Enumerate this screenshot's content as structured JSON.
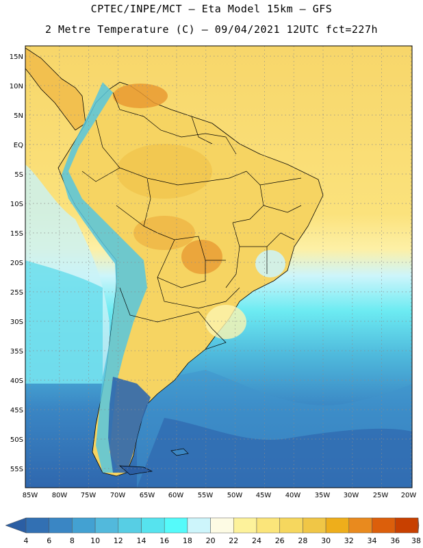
{
  "header": {
    "line1": "CPTEC/INPE/MCT –  Eta Model 15km – GFS",
    "line2": "2 Metre Temperature (C) – 09/04/2021 12UTC fct=227h"
  },
  "map": {
    "lat_labels": [
      "15N",
      "10N",
      "5N",
      "EQ",
      "5S",
      "10S",
      "15S",
      "20S",
      "25S",
      "30S",
      "35S",
      "40S",
      "45S",
      "50S",
      "55S"
    ],
    "lon_labels": [
      "85W",
      "80W",
      "75W",
      "70W",
      "65W",
      "60W",
      "55W",
      "50W",
      "45W",
      "40W",
      "35W",
      "30W",
      "25W",
      "20W"
    ]
  },
  "colorbar": {
    "values": [
      "4",
      "6",
      "8",
      "10",
      "12",
      "14",
      "16",
      "18",
      "20",
      "22",
      "24",
      "26",
      "28",
      "30",
      "32",
      "34",
      "36",
      "38"
    ],
    "colors": [
      "#2b5ea3",
      "#3270b3",
      "#3a86c4",
      "#43a1d2",
      "#52b9dc",
      "#57cee4",
      "#56e3ee",
      "#55fafa",
      "#cdf5fb",
      "#fdfbe4",
      "#fdf29b",
      "#fbe57a",
      "#f6d75e",
      "#f0c646",
      "#eeae1b",
      "#e98a1e",
      "#dc5f0b",
      "#c84000",
      "#b22c00"
    ]
  },
  "colors": {
    "land_warm": "#f6d462",
    "land_hot": "#eaa437",
    "ocean_warm": "#fbe27c",
    "ocean_cool": "#55fafa",
    "ocean_cold": "#2f67ae"
  }
}
